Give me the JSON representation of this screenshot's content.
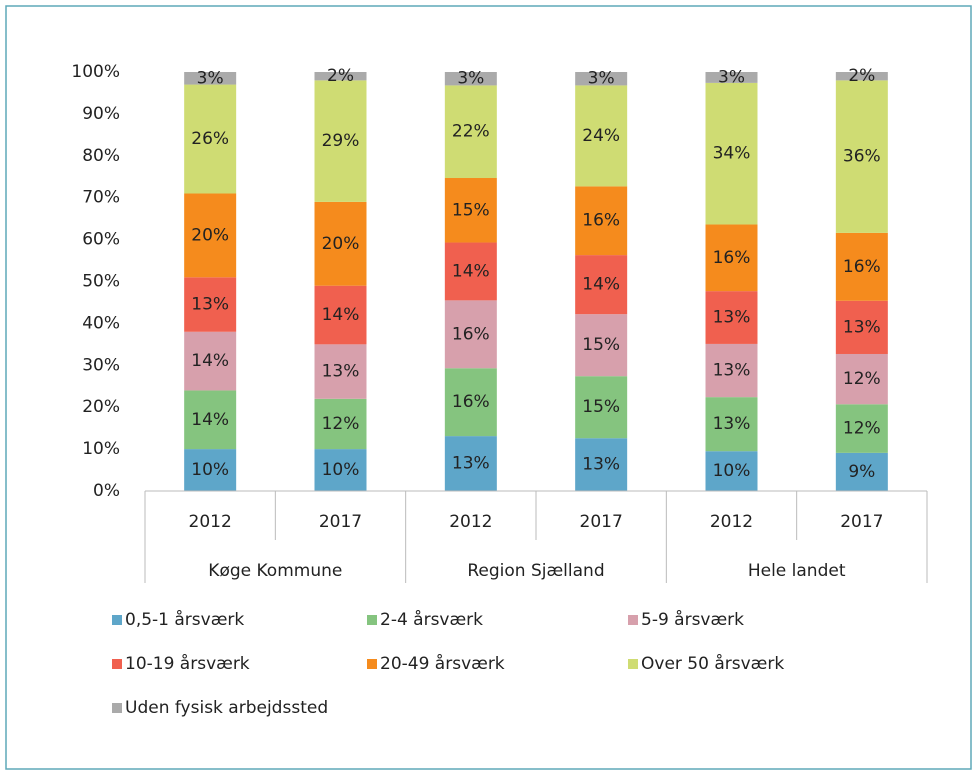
{
  "chart_data": {
    "type": "stacked_bar",
    "categories": [
      "2012",
      "2017",
      "2012",
      "2017",
      "2012",
      "2017"
    ],
    "groups": [
      "Køge Kommune",
      "Region Sjælland",
      "Hele landet"
    ],
    "series": [
      {
        "name": "0,5-1 årsværk",
        "color": "#5ea6c9",
        "values": [
          10,
          10,
          13.1,
          12.6,
          9.5,
          9.1
        ],
        "value_labels": [
          "10%",
          "10%",
          "13%",
          "13%",
          "10%",
          "9%"
        ]
      },
      {
        "name": "2-4 årsværk",
        "color": "#85c47f",
        "values": [
          14,
          12,
          16.2,
          14.8,
          12.9,
          11.6
        ],
        "value_labels": [
          "14%",
          "12%",
          "16%",
          "15%",
          "13%",
          "12%"
        ]
      },
      {
        "name": "5-9 årsværk",
        "color": "#d7a0ac",
        "values": [
          14,
          13,
          16.2,
          14.8,
          12.7,
          12.0
        ],
        "value_labels": [
          "14%",
          "13%",
          "16%",
          "15%",
          "13%",
          "12%"
        ]
      },
      {
        "name": "10-19 årsværk",
        "color": "#f0604f",
        "values": [
          13,
          14,
          13.8,
          14.1,
          12.6,
          12.7
        ],
        "value_labels": [
          "13%",
          "14%",
          "14%",
          "14%",
          "13%",
          "13%"
        ]
      },
      {
        "name": "20-49 årsværk",
        "color": "#f58b1d",
        "values": [
          20,
          20,
          15.4,
          16.4,
          15.9,
          16.2
        ],
        "value_labels": [
          "20%",
          "20%",
          "15%",
          "16%",
          "16%",
          "16%"
        ]
      },
      {
        "name": "Over 50 årsværk",
        "color": "#cfdc73",
        "values": [
          26,
          29,
          22.1,
          24.1,
          33.8,
          36.4
        ],
        "value_labels": [
          "26%",
          "29%",
          "22%",
          "24%",
          "34%",
          "36%"
        ]
      },
      {
        "name": "Uden fysisk arbejdssted",
        "color": "#aaaaaa",
        "values": [
          3,
          2,
          3.2,
          3.2,
          2.6,
          2.0
        ],
        "value_labels": [
          "3%",
          "2%",
          "3%",
          "3%",
          "3%",
          "2%"
        ]
      }
    ],
    "ylim": [
      0,
      100
    ],
    "yticks": [
      {
        "value": 0,
        "label": "0%"
      },
      {
        "value": 10,
        "label": "10%"
      },
      {
        "value": 20,
        "label": "20%"
      },
      {
        "value": 30,
        "label": "30%"
      },
      {
        "value": 40,
        "label": "40%"
      },
      {
        "value": 50,
        "label": "50%"
      },
      {
        "value": 60,
        "label": "60%"
      },
      {
        "value": 70,
        "label": "70%"
      },
      {
        "value": 80,
        "label": "80%"
      },
      {
        "value": 90,
        "label": "90%"
      },
      {
        "value": 100,
        "label": "100%"
      }
    ],
    "grid": false
  }
}
